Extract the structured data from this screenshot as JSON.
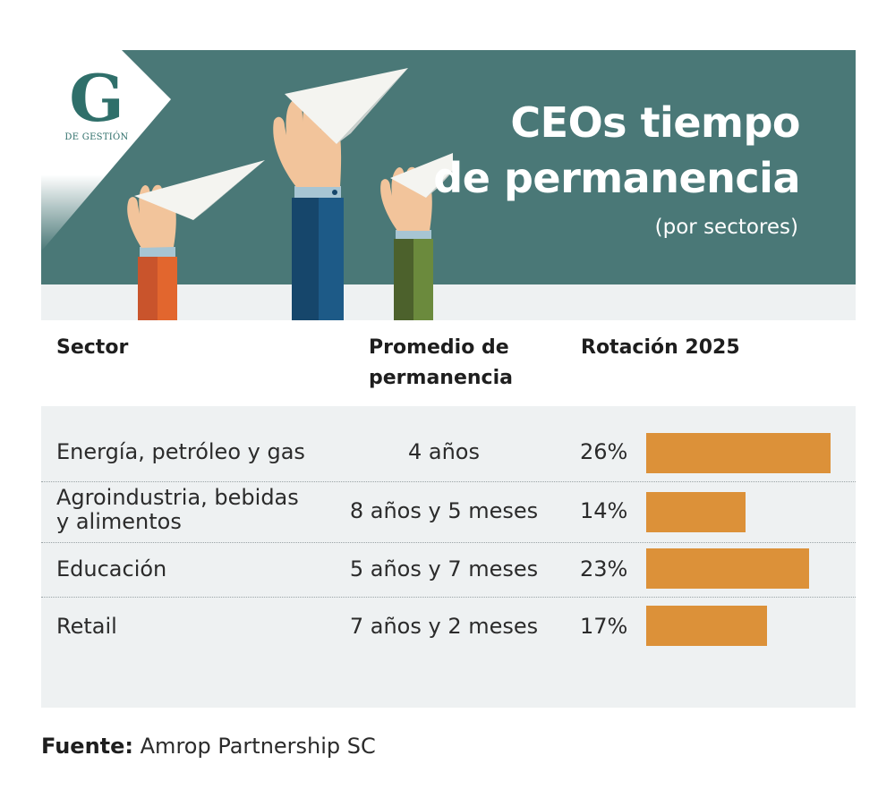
{
  "logo": {
    "letter": "G",
    "subtext": "DE GESTIÓN"
  },
  "header": {
    "title_line1": "CEOs tiempo",
    "title_line2": "de permanencia",
    "subtitle": "(por sectores)"
  },
  "columns": {
    "sector": "Sector",
    "avg_line1": "Promedio de",
    "avg_line2": "permanencia",
    "rotation": "Rotación 2025"
  },
  "chart_data": {
    "type": "bar",
    "orientation": "horizontal",
    "categories": [
      "Energía, petróleo y gas",
      "Agroindustria, bebidas y alimentos",
      "Educación",
      "Retail"
    ],
    "series": [
      {
        "values": [
          26,
          14,
          23,
          17
        ]
      }
    ],
    "unit": "%",
    "xlim": [
      0,
      26
    ]
  },
  "rows": [
    {
      "sector_line1": "Energía, petróleo y gas",
      "sector_line2": "",
      "avg": "4 años",
      "pct": "26%"
    },
    {
      "sector_line1": "Agroindustria, bebidas",
      "sector_line2": "y alimentos",
      "avg": "8 años y 5 meses",
      "pct": "14%"
    },
    {
      "sector_line1": "Educación",
      "sector_line2": "",
      "avg": "5 años y 7 meses",
      "pct": "23%"
    },
    {
      "sector_line1": "Retail",
      "sector_line2": "",
      "avg": "7 años y 2 meses",
      "pct": "17%"
    }
  ],
  "source": {
    "label": "Fuente:",
    "text": "Amrop Partnership SC"
  },
  "colors": {
    "banner": "#4a7877",
    "bar": "#dc9139",
    "table_bg": "#eef1f2",
    "sleeve_left": "#c9542c",
    "sleeve_center": "#16466b",
    "sleeve_right": "#5a7235"
  }
}
